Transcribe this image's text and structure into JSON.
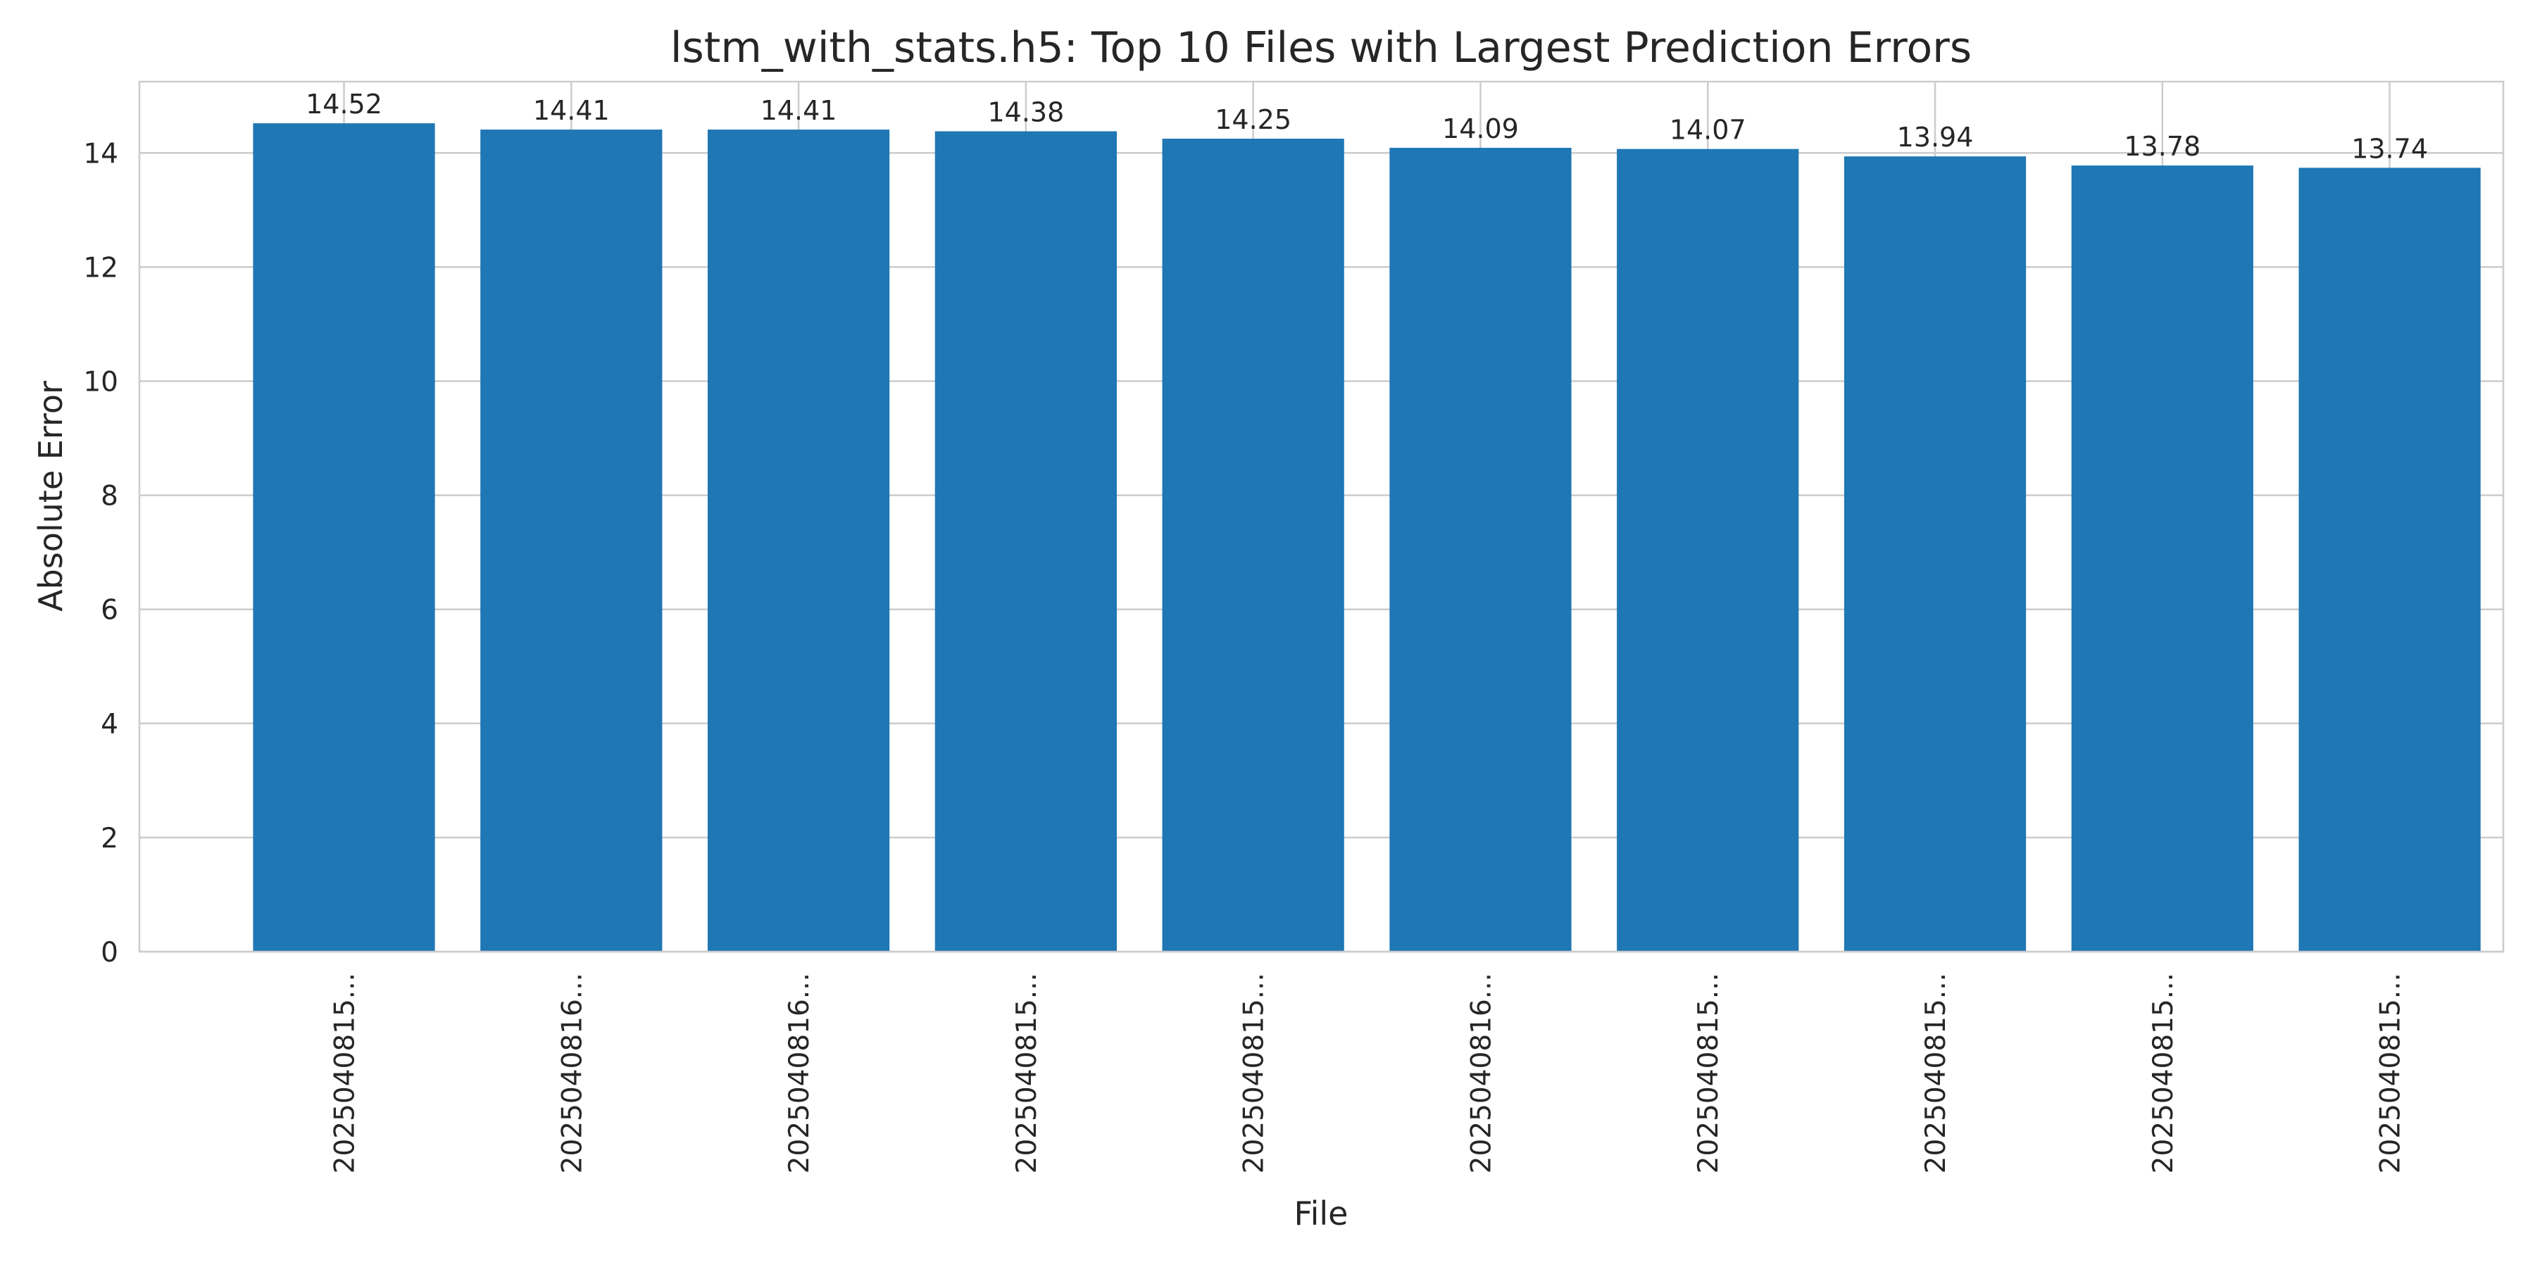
{
  "chart_data": {
    "type": "bar",
    "title": "lstm_with_stats.h5: Top 10 Files with Largest Prediction Errors",
    "xlabel": "File",
    "ylabel": "Absolute Error",
    "categories": [
      "2025040815...",
      "2025040816...",
      "2025040816...",
      "2025040815...",
      "2025040815...",
      "2025040816...",
      "2025040815...",
      "2025040815...",
      "2025040815...",
      "2025040815..."
    ],
    "values": [
      14.52,
      14.41,
      14.41,
      14.38,
      14.25,
      14.09,
      14.07,
      13.94,
      13.78,
      13.74
    ],
    "data_labels": [
      "14.52",
      "14.41",
      "14.41",
      "14.38",
      "14.25",
      "14.09",
      "14.07",
      "13.94",
      "13.78",
      "13.74"
    ],
    "ylim": [
      0,
      15.25
    ],
    "yticks": [
      0,
      2,
      4,
      6,
      8,
      10,
      12,
      14
    ],
    "grid": true,
    "bar_color": "#1f77b4",
    "grid_color": "#cccccc"
  }
}
